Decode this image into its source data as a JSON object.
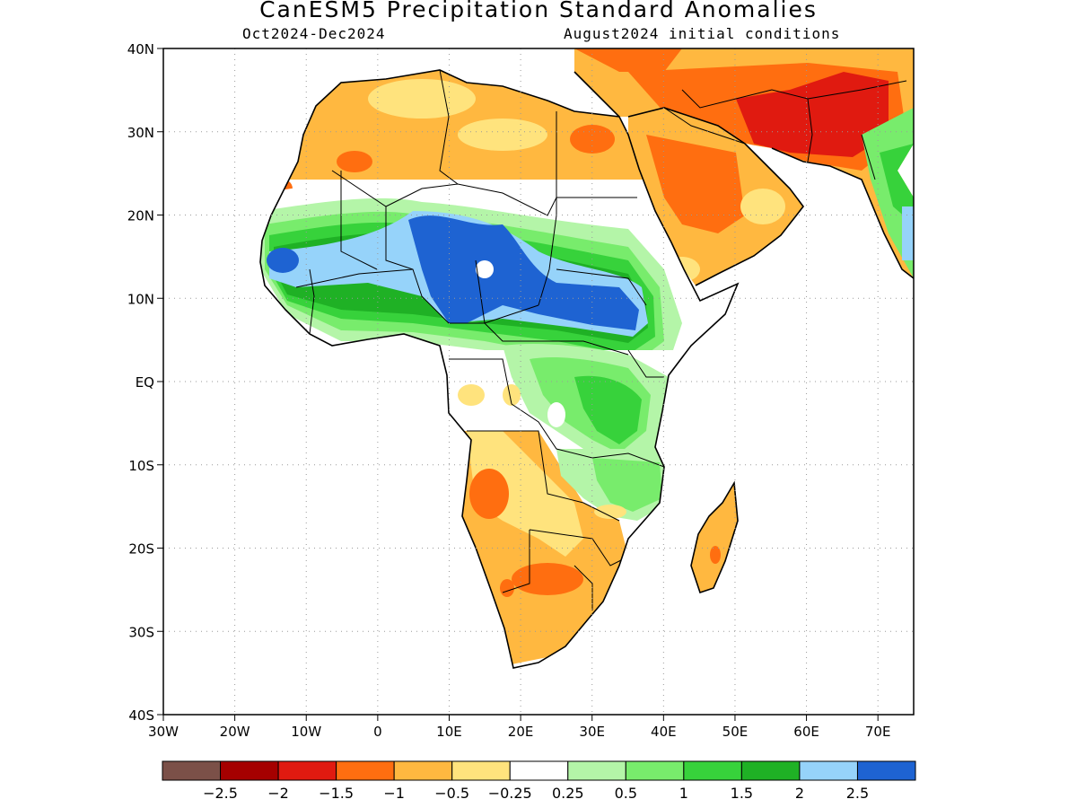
{
  "header": {
    "title": "CanESM5 Precipitation Standard Anomalies",
    "period": "Oct2024-Dec2024",
    "initial_conditions": "August2024 initial conditions"
  },
  "map": {
    "lon_range": [
      -30,
      75
    ],
    "lat_range": [
      -40,
      40
    ],
    "x_ticks": [
      "30W",
      "20W",
      "10W",
      "0",
      "10E",
      "20E",
      "30E",
      "40E",
      "50E",
      "60E",
      "70E"
    ],
    "y_ticks": [
      "40N",
      "30N",
      "20N",
      "10N",
      "EQ",
      "10S",
      "20S",
      "30S",
      "40S"
    ],
    "grid": "dotted",
    "land_fill": "#ffffff",
    "ocean_fill": "#ffffff",
    "border_color": "#000000"
  },
  "legend": {
    "colors": [
      "#7b5048",
      "#a50000",
      "#e01a10",
      "#ff6e10",
      "#ffb840",
      "#ffe37d",
      "#ffffff",
      "#b4f5a8",
      "#78ec6c",
      "#37d23b",
      "#1fb125",
      "#96d3fa",
      "#1e63d2"
    ],
    "labels": [
      "-2.5",
      "-2",
      "-1.5",
      "-1",
      "-0.5",
      "-0.25",
      "0.25",
      "0.5",
      "1",
      "1.5",
      "2",
      "2.5"
    ]
  }
}
